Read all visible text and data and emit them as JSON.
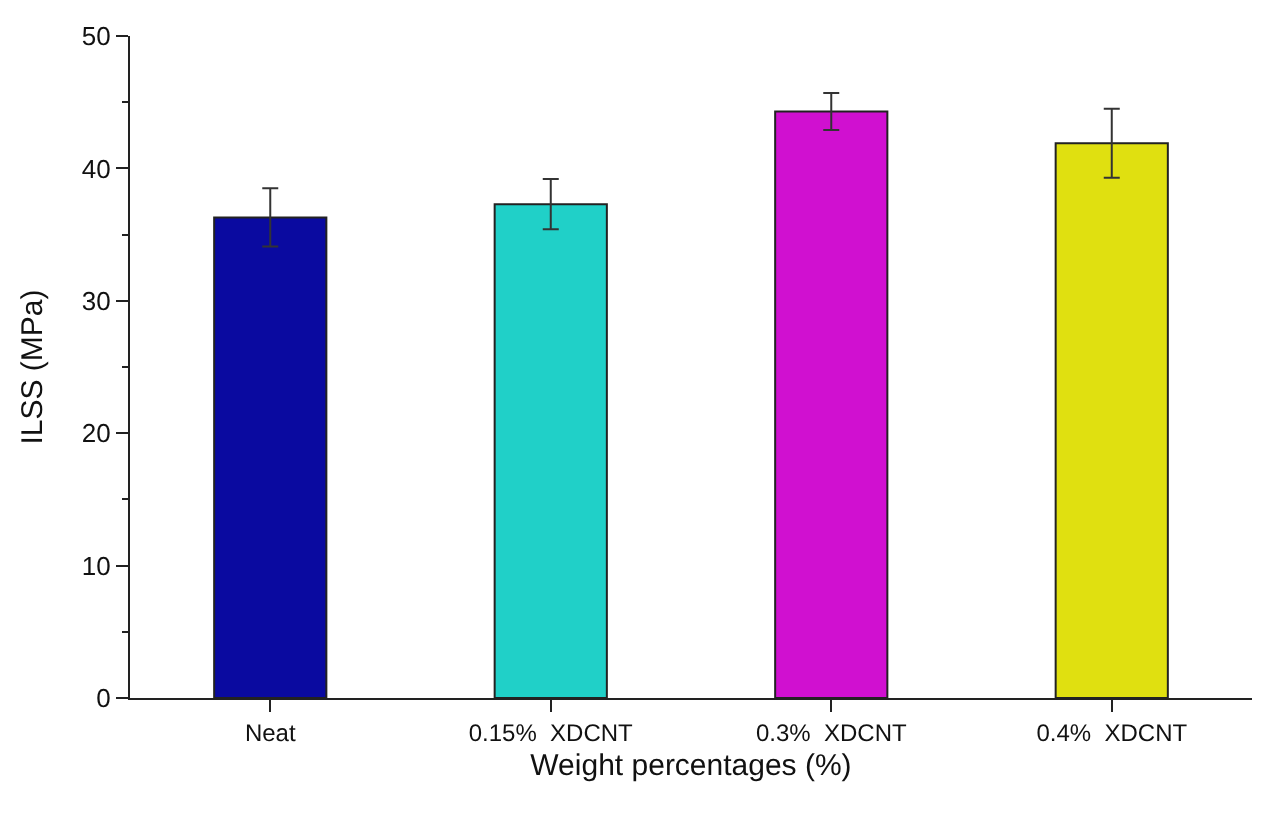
{
  "chart_data": {
    "type": "bar",
    "xlabel": "Weight percentages (%)",
    "ylabel": "ILSS (MPa)",
    "categories": [
      "Neat",
      "0.15%  XDCNT",
      "0.3%  XDCNT",
      "0.4%  XDCNT"
    ],
    "values": [
      36.3,
      37.3,
      44.3,
      41.9
    ],
    "errors": [
      2.2,
      1.9,
      1.4,
      2.6
    ],
    "colors": [
      "#0a0aa0",
      "#20d0c8",
      "#d010d0",
      "#e0e010"
    ],
    "ylim": [
      0,
      50
    ],
    "yticks": [
      0,
      {
        "value": 5,
        "label": null
      },
      10,
      {
        "value": 15,
        "label": null
      },
      20,
      {
        "value": 25,
        "label": null
      },
      30,
      {
        "value": 35,
        "label": null
      },
      40,
      {
        "value": 45,
        "label": null
      },
      50
    ],
    "legend": false
  }
}
